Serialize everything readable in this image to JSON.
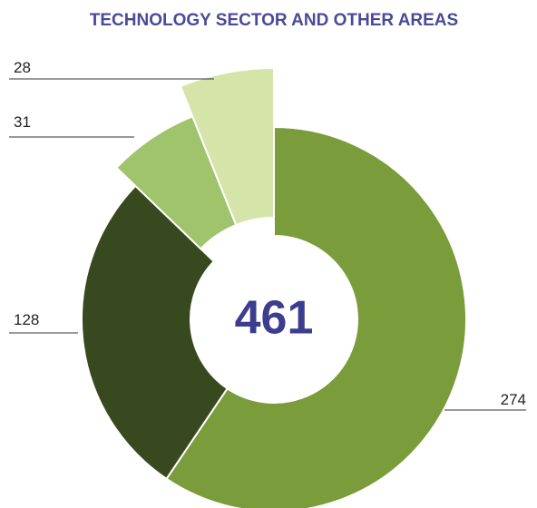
{
  "chart_data": {
    "type": "pie",
    "title": "TECHNOLOGY SECTOR AND OTHER AREAS",
    "values": [
      274,
      128,
      31,
      28
    ],
    "colors": [
      "#7a9c3a",
      "#38491f",
      "#9fc46b",
      "#d5e5aa"
    ],
    "total": 461
  }
}
